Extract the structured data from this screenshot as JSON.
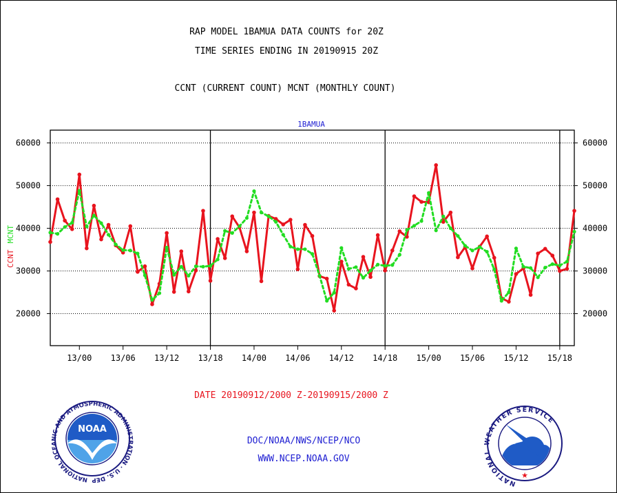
{
  "header": {
    "title_line1": "RAP MODEL 1BAMUA DATA COUNTS for 20Z",
    "title_line2": "TIME SERIES ENDING IN 20190915 20Z",
    "subtitle": "CCNT (CURRENT COUNT) MCNT (MONTHLY COUNT)"
  },
  "footer": {
    "date_range": "DATE 20190912/2000 Z-20190915/2000 Z",
    "org": "DOC/NOAA/NWS/NCEP/NCO",
    "url": "WWW.NCEP.NOAA.GOV"
  },
  "logos": {
    "noaa_text": "NOAA",
    "noaa_ring": "NATIONAL OCEANIC AND ATMOSPHERIC ADMINISTRATION · U.S. DEPARTMENT OF COMMERCE ·",
    "nws_ring": "NATIONAL WEATHER SERVICE"
  },
  "colors": {
    "ccnt": "#e8141e",
    "mcnt": "#22dd22",
    "frame": "#000000",
    "footer_blue": "#1e1ed2"
  },
  "chart_data": {
    "type": "line",
    "title": "1BAMUA",
    "ylabel_left_parts": [
      "CCNT",
      "MCNT"
    ],
    "x_tick_labels": [
      "13/00",
      "13/06",
      "13/12",
      "13/18",
      "14/00",
      "14/06",
      "14/12",
      "14/18",
      "15/00",
      "15/06",
      "15/12",
      "15/18"
    ],
    "x_tick_hours": [
      4,
      10,
      16,
      22,
      28,
      34,
      40,
      46,
      52,
      58,
      64,
      70
    ],
    "x_range_hours": [
      0,
      72
    ],
    "day_boundary_hours": [
      22,
      46,
      70
    ],
    "ylim": [
      12500,
      63000
    ],
    "y_ticks": [
      20000,
      30000,
      40000,
      50000,
      60000
    ],
    "y_tick_labels": [
      "20000",
      "30000",
      "40000",
      "50000",
      "60000"
    ],
    "grid": "horizontal dotted",
    "series": [
      {
        "name": "CCNT",
        "color": "#e8141e",
        "values": [
          36800,
          46800,
          41800,
          39800,
          52600,
          35300,
          45300,
          37400,
          40800,
          36000,
          34300,
          40500,
          29800,
          31100,
          22200,
          27000,
          38900,
          25100,
          34600,
          25200,
          30100,
          44100,
          27700,
          37500,
          33000,
          42800,
          40200,
          34600,
          43700,
          27600,
          42900,
          42200,
          40900,
          42000,
          30400,
          40800,
          38200,
          28800,
          28200,
          20700,
          32200,
          26800,
          25900,
          33300,
          28600,
          38400,
          30100,
          34800,
          39300,
          38000,
          47500,
          46200,
          46100,
          54800,
          41500,
          43700,
          33200,
          35600,
          30600,
          35700,
          38100,
          33100,
          23600,
          22800,
          29300,
          30600,
          24400,
          34100,
          35200,
          33600,
          30000,
          30500,
          44100
        ]
      },
      {
        "name": "MCNT",
        "color": "#22dd22",
        "values": [
          39000,
          38700,
          40300,
          41300,
          48800,
          40400,
          43000,
          41200,
          38500,
          36200,
          34900,
          34800,
          34100,
          29000,
          23200,
          24800,
          35500,
          29100,
          31000,
          28900,
          31100,
          31000,
          31200,
          32700,
          39400,
          38900,
          40500,
          42400,
          48700,
          43700,
          42800,
          41500,
          38500,
          35700,
          35100,
          35100,
          34000,
          28900,
          23000,
          24900,
          35400,
          30500,
          30900,
          28400,
          30100,
          31500,
          31200,
          31400,
          33800,
          39600,
          40600,
          41700,
          48300,
          39500,
          42800,
          40000,
          38200,
          35900,
          34800,
          35600,
          34500,
          30400,
          23000,
          25000,
          35300,
          31000,
          30700,
          28500,
          30800,
          31600,
          31300,
          32200,
          39200
        ]
      }
    ]
  }
}
